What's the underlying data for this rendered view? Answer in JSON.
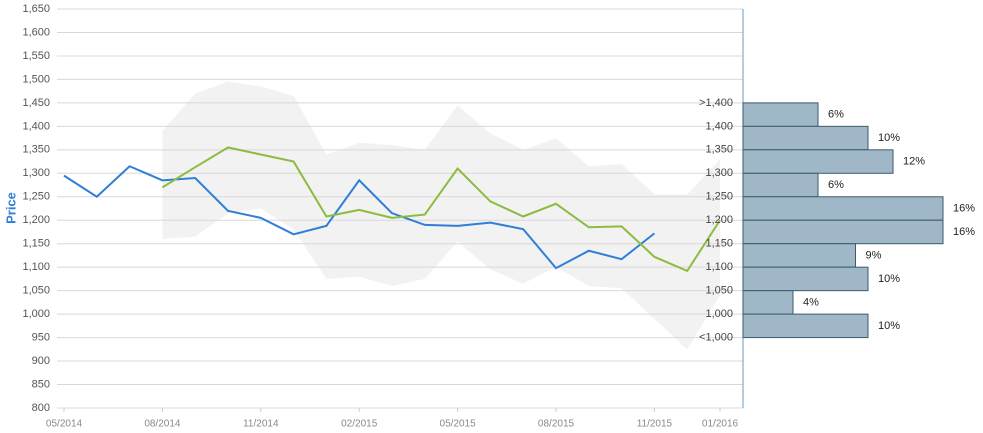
{
  "chart_data": {
    "type": "line",
    "y_label": "Price",
    "categories": [
      "05/2014",
      null,
      null,
      "08/2014",
      null,
      null,
      "11/2014",
      null,
      null,
      "02/2015",
      null,
      null,
      "05/2015",
      null,
      null,
      "08/2015",
      null,
      null,
      "11/2015",
      null,
      "01/2016"
    ],
    "ylim": [
      800,
      1650
    ],
    "yticks": [
      800,
      850,
      900,
      950,
      {
        "value": 1000,
        "label": "1,000"
      },
      {
        "value": 1050,
        "label": "1,050"
      },
      {
        "value": 1100,
        "label": "1,100"
      },
      {
        "value": 1150,
        "label": "1,150"
      },
      {
        "value": 1200,
        "label": "1,200"
      },
      {
        "value": 1250,
        "label": "1,250"
      },
      {
        "value": 1300,
        "label": "1,300"
      },
      {
        "value": 1350,
        "label": "1,350"
      },
      {
        "value": 1400,
        "label": "1,400"
      },
      {
        "value": 1450,
        "label": "1,450"
      },
      {
        "value": 1500,
        "label": "1,500"
      },
      {
        "value": 1550,
        "label": "1,550"
      },
      {
        "value": 1600,
        "label": "1,600"
      },
      {
        "value": 1650,
        "label": "1,650"
      }
    ],
    "grid": true,
    "band": {
      "color": "#f2f2f2",
      "upper": [
        null,
        null,
        null,
        1390,
        1470,
        1495,
        1485,
        1465,
        1340,
        1365,
        1360,
        1350,
        1445,
        1385,
        1350,
        1375,
        1315,
        1320,
        1255,
        1255,
        1330
      ],
      "lower": [
        null,
        null,
        null,
        1160,
        1165,
        1215,
        1225,
        1180,
        1075,
        1080,
        1060,
        1075,
        1155,
        1095,
        1065,
        1100,
        1060,
        1055,
        990,
        925,
        1040
      ]
    },
    "series": [
      {
        "color": "#2f7ed8",
        "values": [
          1295,
          1250,
          1315,
          1285,
          1290,
          1220,
          1205,
          1170,
          1188,
          1285,
          1215,
          1190,
          1188,
          1195,
          1181,
          1098,
          1135,
          1117,
          1172,
          null,
          null
        ]
      },
      {
        "color": "#8bbc3f",
        "values": [
          null,
          null,
          null,
          1270,
          1313,
          1355,
          1340,
          1325,
          1208,
          1222,
          1205,
          1212,
          1310,
          1240,
          1208,
          1235,
          1185,
          1187,
          1122,
          1092,
          1200
        ]
      }
    ],
    "histogram": {
      "color": "#9fb7c6",
      "bins": [
        {
          "value": 1450,
          "label": ">1,400"
        },
        {
          "value": 1400,
          "label": "1,400"
        },
        {
          "value": 1350,
          "label": "1,350"
        },
        {
          "value": 1300,
          "label": "1,300"
        },
        {
          "value": 1250,
          "label": "1,250"
        },
        {
          "value": 1200,
          "label": "1,200"
        },
        {
          "value": 1150,
          "label": "1,150"
        },
        {
          "value": 1100,
          "label": "1,100"
        },
        {
          "value": 1050,
          "label": "1,050"
        },
        {
          "value": 1000,
          "label": "1,000"
        },
        {
          "value": 950,
          "label": "<1,000"
        }
      ],
      "values": [
        6,
        10,
        12,
        6,
        16,
        16,
        9,
        10,
        4,
        10
      ],
      "value_labels": [
        "6%",
        "10%",
        "12%",
        "6%",
        "16%",
        "16%",
        "9%",
        "10%",
        "4%",
        "10%"
      ],
      "xlim": [
        0,
        16
      ]
    }
  }
}
